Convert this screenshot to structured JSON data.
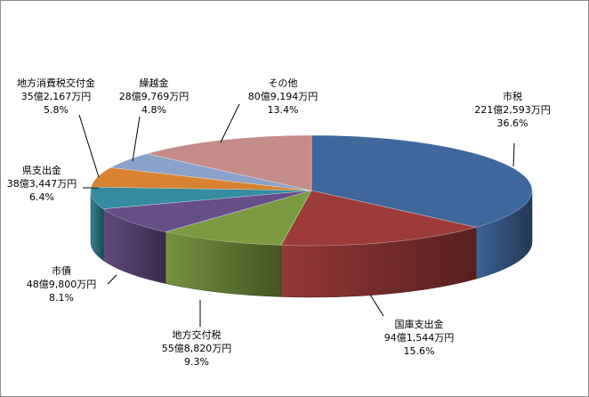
{
  "chart_data": {
    "type": "pie",
    "title": "",
    "three_d": true,
    "legend": "none",
    "slices": [
      {
        "name": "市税",
        "amount": "221億2,593万円",
        "percent": "36.6%",
        "value": 36.6,
        "color": "#3f689c"
      },
      {
        "name": "国庫支出金",
        "amount": "94億1,544万円",
        "percent": "15.6%",
        "value": 15.6,
        "color": "#9c3b38"
      },
      {
        "name": "地方交付税",
        "amount": "55億8,820万円",
        "percent": "9.3%",
        "value": 9.3,
        "color": "#7c9a41"
      },
      {
        "name": "市債",
        "amount": "48億9,800万円",
        "percent": "8.1%",
        "value": 8.1,
        "color": "#664e87"
      },
      {
        "name": "県支出金",
        "amount": "38億3,447万円",
        "percent": "6.4%",
        "value": 6.4,
        "color": "#358b9f"
      },
      {
        "name": "地方消費税交付金",
        "amount": "35億2,167万円",
        "percent": "5.8%",
        "value": 5.8,
        "color": "#d88231"
      },
      {
        "name": "繰越金",
        "amount": "28億9,769万円",
        "percent": "4.8%",
        "value": 4.8,
        "color": "#8aa1c9"
      },
      {
        "name": "その他",
        "amount": "80億9,194万円",
        "percent": "13.4%",
        "value": 13.4,
        "color": "#c48b88"
      }
    ]
  }
}
